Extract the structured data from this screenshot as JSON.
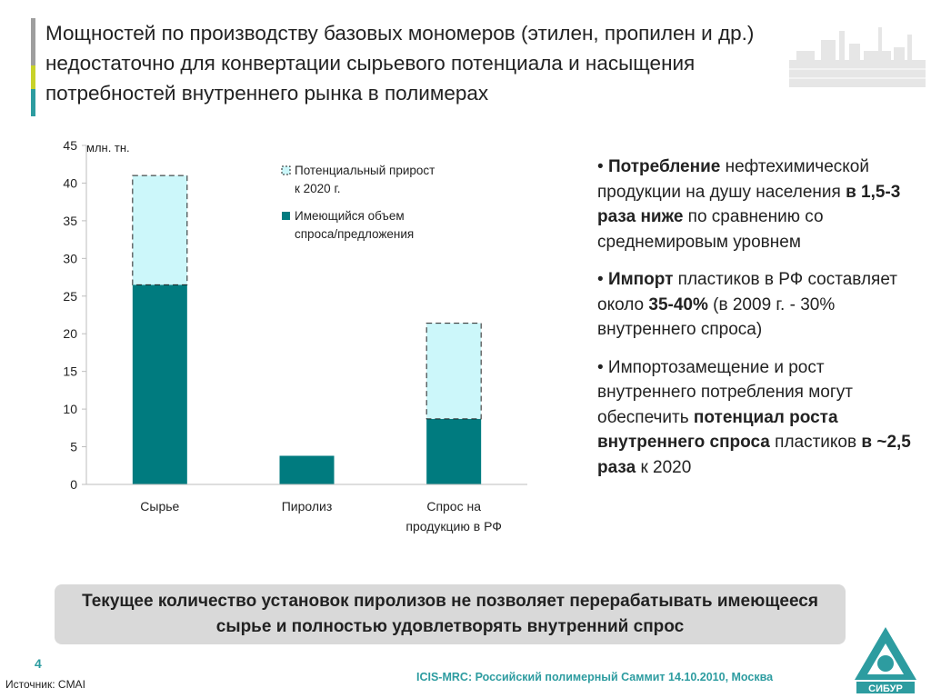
{
  "header": {
    "title": "Мощностей по производству базовых мономеров (этилен, пропилен и др.) недостаточно для конвертации сырьевого потенциала и насыщения потребностей внутреннего рынка в полимерах"
  },
  "colors": {
    "accent_grey": "#9e9e9e",
    "accent_yellow": "#c8d22a",
    "accent_teal": "#2d9ca0",
    "bar_existing": "#007b7f",
    "bar_potential": "#ccf7fa",
    "callout_bg": "#d9d9d9"
  },
  "chart_data": {
    "type": "bar",
    "stacked": true,
    "unit_label": "млн. тн.",
    "categories": [
      "Сырье",
      "Пиролиз",
      "Спрос на продукцию в РФ"
    ],
    "series": [
      {
        "name": "Имеющийся объем спроса/предложения",
        "values": [
          26.5,
          3.8,
          8.7
        ],
        "style": "solid-teal"
      },
      {
        "name": "Потенциальный прирост к 2020 г.",
        "values": [
          14.5,
          0,
          12.7
        ],
        "style": "light-cyan-dashed"
      }
    ],
    "ylim": [
      0,
      45
    ],
    "yticks": [
      "0",
      "5",
      "10",
      "15",
      "20",
      "25",
      "30",
      "35",
      "40",
      "45"
    ],
    "grid": false,
    "legend_position": "top-right"
  },
  "bullets": [
    {
      "parts": [
        {
          "t": "• ",
          "b": false
        },
        {
          "t": "Потребление",
          "b": true
        },
        {
          "t": " нефтехимической продукции на душу населения ",
          "b": false
        },
        {
          "t": "в 1,5-3 раза ниже",
          "b": true
        },
        {
          "t": " по сравнению со среднемировым уровнем",
          "b": false
        }
      ]
    },
    {
      "parts": [
        {
          "t": "• ",
          "b": false
        },
        {
          "t": "Импорт",
          "b": true
        },
        {
          "t": " пластиков в РФ составляет около ",
          "b": false
        },
        {
          "t": "35-40%",
          "b": true
        },
        {
          "t": " (в 2009 г. - 30% внутреннего спроса)",
          "b": false
        }
      ]
    },
    {
      "parts": [
        {
          "t": "• Импортозамещение и рост внутреннего потребления могут обеспечить ",
          "b": false
        },
        {
          "t": "потенциал роста внутреннего спроса",
          "b": true
        },
        {
          "t": " пластиков ",
          "b": false
        },
        {
          "t": "в ~2,5 раза",
          "b": true
        },
        {
          "t": " к 2020",
          "b": false
        }
      ]
    }
  ],
  "callout": {
    "text": "Текущее количество установок пиролизов не позволяет перерабатывать имеющееся сырье и полностью удовлетворять внутренний спрос"
  },
  "footer": {
    "page_number": "4",
    "source": "Источник: CMAI",
    "event": "ICIS-MRC: Российский полимерный Саммит 14.10.2010, Москва",
    "logo_text": "СИБУР"
  }
}
